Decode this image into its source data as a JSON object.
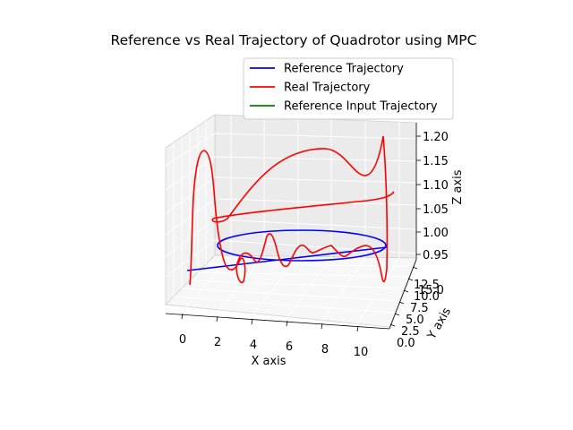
{
  "chart_data": {
    "type": "line",
    "projection": "3d",
    "title": "Reference vs Real Trajectory of Quadrotor using MPC",
    "xlabel": "X axis",
    "ylabel": "Y axis",
    "zlabel": "Z axis",
    "xlim": [
      -1,
      11
    ],
    "ylim": [
      0,
      15
    ],
    "zlim": [
      0.92,
      1.22
    ],
    "x_ticks": [
      "0",
      "2",
      "4",
      "6",
      "8",
      "10"
    ],
    "y_ticks": [
      "0.0",
      "2.5",
      "5.0",
      "7.5",
      "10.0",
      "12.5",
      "15.0"
    ],
    "z_ticks": [
      "0.95",
      "1.00",
      "1.05",
      "1.10",
      "1.15",
      "1.20"
    ],
    "grid": true,
    "legend_position": "upper right",
    "legend": [
      "Reference Trajectory",
      "Real Trajectory",
      "Reference Input Trajectory"
    ],
    "series": [
      {
        "name": "Reference Trajectory",
        "color": "#0000ff"
      },
      {
        "name": "Real Trajectory",
        "color": "#ff0000"
      },
      {
        "name": "Reference Input Trajectory",
        "color": "#008000"
      }
    ]
  }
}
